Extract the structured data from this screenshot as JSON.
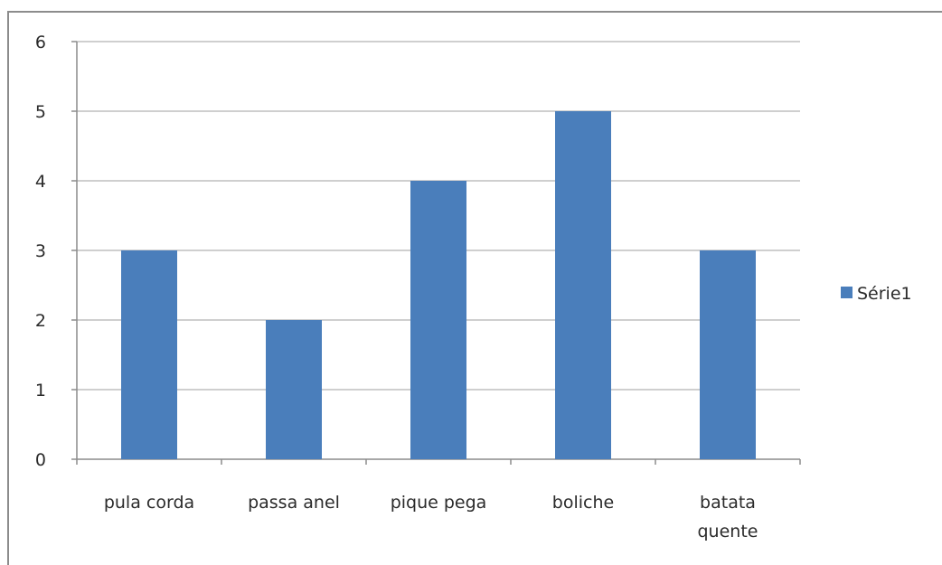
{
  "chart_data": {
    "type": "bar",
    "categories": [
      "pula corda",
      "passa anel",
      "pique pega",
      "boliche",
      "batata quente"
    ],
    "category_lines": [
      [
        "pula corda"
      ],
      [
        "passa anel"
      ],
      [
        "pique pega"
      ],
      [
        "boliche"
      ],
      [
        "batata",
        "quente"
      ]
    ],
    "series": [
      {
        "name": "Série1",
        "values": [
          3,
          2,
          4,
          5,
          3
        ]
      }
    ],
    "ylim": [
      0,
      6
    ],
    "yticks": [
      0,
      1,
      2,
      3,
      4,
      5,
      6
    ],
    "grid": true,
    "legend_position": "right",
    "colors": {
      "bar": "#4a7ebb",
      "grid": "#bfbfbf",
      "axis": "#8c8c8c"
    }
  }
}
